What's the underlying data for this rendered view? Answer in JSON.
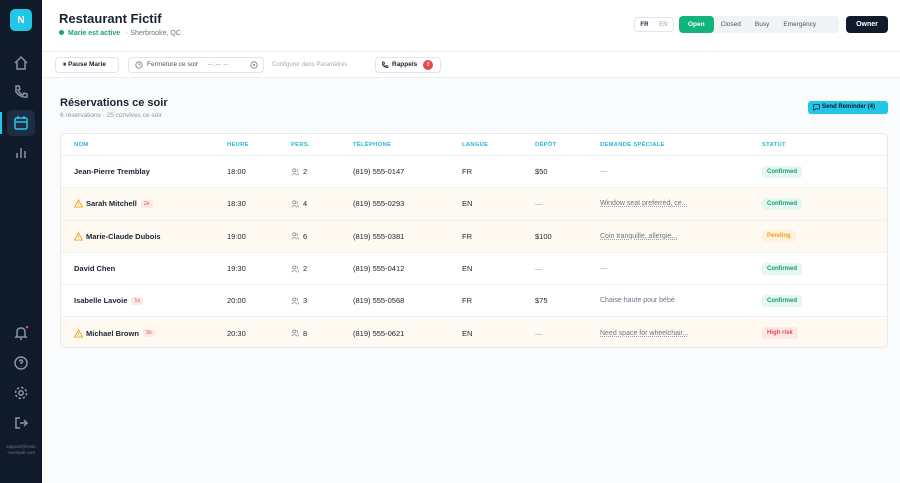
{
  "sidebar": {
    "logo": "N",
    "support": "support@resto-exemple.com"
  },
  "header": {
    "title": "Restaurant Fictif",
    "agent_status": "Marie est active",
    "location": "· Sherbrooke, QC",
    "languages": [
      "FR",
      "EN"
    ],
    "modes": [
      "Open",
      "Closed",
      "Busy",
      "Emergency"
    ],
    "role": "Owner"
  },
  "toolbar": {
    "pause": "Pause Marie",
    "closing_label": "Fermeture ce soir",
    "closing_time": "--:-- --",
    "settings_hint": "Configurer dans Paramètres",
    "reminders": "Rappels",
    "reminders_count": "3"
  },
  "section": {
    "title": "Réservations ce soir",
    "subtitle": "6 réservations · 25 convives ce soir",
    "action": "Send Reminder (4)"
  },
  "table": {
    "columns": [
      "NOM",
      "HEURE",
      "PERS.",
      "TÉLÉPHONE",
      "LANGUE",
      "DÉPÔT",
      "DEMANDE SPÉCIALE",
      "STATUT"
    ],
    "rows": [
      {
        "name": "Jean-Pierre Tremblay",
        "time": "18:00",
        "guests": "2",
        "phone": "(819) 555-0147",
        "language": "FR",
        "deposit": "$50",
        "request": "—",
        "status": "Confirmed"
      },
      {
        "name": "Sarah Mitchell",
        "visits": "2x",
        "time": "18:30",
        "guests": "4",
        "phone": "(819) 555-0293",
        "language": "EN",
        "deposit": "—",
        "request": "Window seat preferred, ce...",
        "status": "Confirmed"
      },
      {
        "name": "Marie-Claude Dubois",
        "time": "19:00",
        "guests": "6",
        "phone": "(819) 555-0381",
        "language": "FR",
        "deposit": "$100",
        "request": "Coin tranquille, allergie...",
        "status": "Pending"
      },
      {
        "name": "David Chen",
        "time": "19:30",
        "guests": "2",
        "phone": "(819) 555-0412",
        "language": "EN",
        "deposit": "—",
        "request": "—",
        "status": "Confirmed"
      },
      {
        "name": "Isabelle Lavoie",
        "visits": "1x",
        "time": "20:00",
        "guests": "3",
        "phone": "(819) 555-0568",
        "language": "FR",
        "deposit": "$75",
        "request": "Chaise haute pour bébé",
        "status": "Confirmed"
      },
      {
        "name": "Michael Brown",
        "visits": "3x",
        "time": "20:30",
        "guests": "8",
        "phone": "(819) 555-0621",
        "language": "EN",
        "deposit": "—",
        "request": "Need space for wheelchair...",
        "status": "High risk"
      }
    ]
  }
}
